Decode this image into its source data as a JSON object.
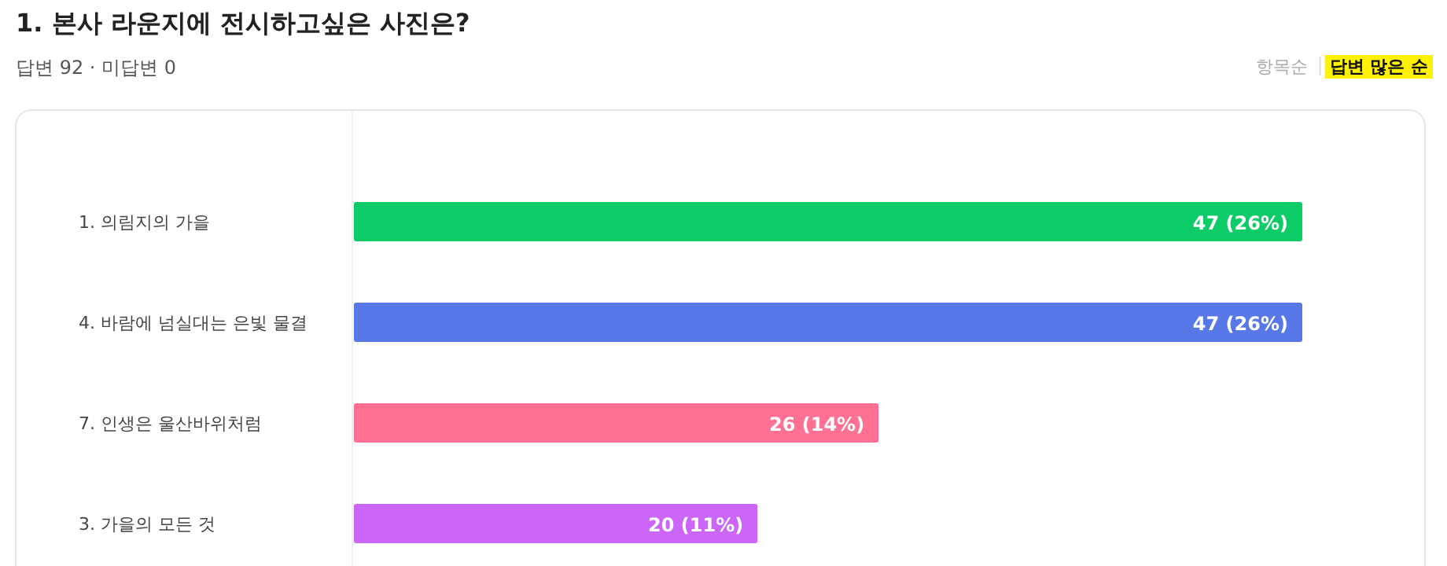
{
  "chart_data": {
    "type": "bar",
    "orientation": "horizontal",
    "title": "1. 본사 라운지에 전시하고싶은 사진은?",
    "subtitle": "답변 92 · 미답변 0",
    "annotations": [
      "항목순",
      "답변 많은 순"
    ],
    "categories": [
      "1. 의림지의 가을",
      "4. 바람에 넘실대는 은빛 물결",
      "7. 인생은 울산바위처럼",
      "3. 가을의 모든 것"
    ],
    "values": [
      47,
      47,
      26,
      20
    ],
    "colors": [
      "#0dcb66",
      "#5878e8",
      "#ff7092",
      "#cb66f8"
    ],
    "value_labels": [
      "47 (26%)",
      "47 (26%)",
      "26 (14%)",
      "20 (11%)"
    ]
  }
}
